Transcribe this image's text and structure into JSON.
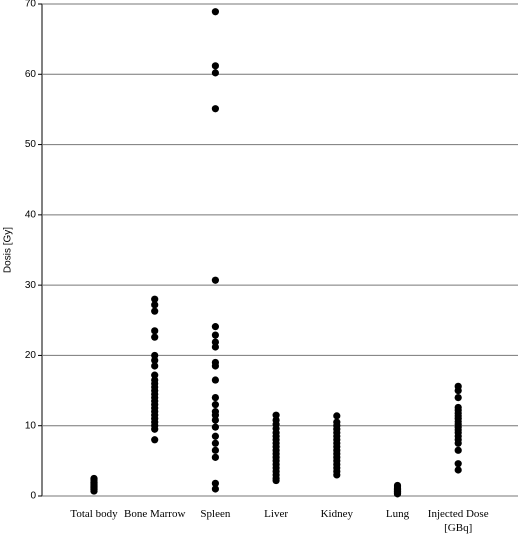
{
  "chart_data": {
    "type": "strip",
    "y_label": "Dosis [Gy]",
    "categories": [
      "Total body",
      "Bone Marrow",
      "Spleen",
      "Liver",
      "Kidney",
      "Lung",
      "Injected Dose [GBq]"
    ],
    "values": [
      [
        0.7,
        0.9,
        1.0,
        1.1,
        1.2,
        1.3,
        1.4,
        1.5,
        1.6,
        1.7,
        1.8,
        1.9,
        2.0,
        2.2,
        2.4,
        2.5
      ],
      [
        28,
        27.2,
        26.3,
        23.5,
        22.6,
        20,
        19.3,
        18.5,
        17.2,
        16.5,
        16,
        15.5,
        15,
        14.5,
        14,
        13.5,
        13,
        12.5,
        12,
        11.5,
        11,
        10.5,
        10,
        9.5,
        8
      ],
      [
        68.9,
        61.2,
        60.2,
        55.1,
        30.7,
        24.1,
        22.9,
        21.9,
        21.2,
        19,
        18.5,
        16.5,
        14,
        13,
        12,
        11.5,
        10.8,
        9.8,
        8.5,
        7.5,
        6.5,
        5.5,
        1.8,
        1.0
      ],
      [
        11.5,
        10.8,
        10.2,
        9.6,
        9,
        8.5,
        8,
        7.5,
        7,
        6.5,
        6,
        5.5,
        5,
        4.5,
        4,
        3.5,
        3,
        2.5,
        2.2
      ],
      [
        11.4,
        10.5,
        10,
        9.5,
        9,
        8.5,
        8,
        7.5,
        7,
        6.5,
        6,
        5.5,
        5,
        4.5,
        4,
        3.5,
        3
      ],
      [
        1.5,
        1.3,
        1.1,
        1.0,
        0.9,
        0.8,
        0.7,
        0.6,
        0.5,
        0.4,
        0.3
      ],
      [
        15.6,
        15,
        14,
        12.6,
        12.2,
        11.8,
        11.4,
        11,
        10.6,
        10.2,
        9.8,
        9.4,
        9,
        8.5,
        8,
        7.5,
        6.5,
        4.6,
        3.7
      ]
    ],
    "color": "#000000",
    "ylim": [
      0,
      70
    ],
    "yticks": [
      0,
      10,
      20,
      30,
      40,
      50,
      60,
      70
    ],
    "grid": true
  }
}
